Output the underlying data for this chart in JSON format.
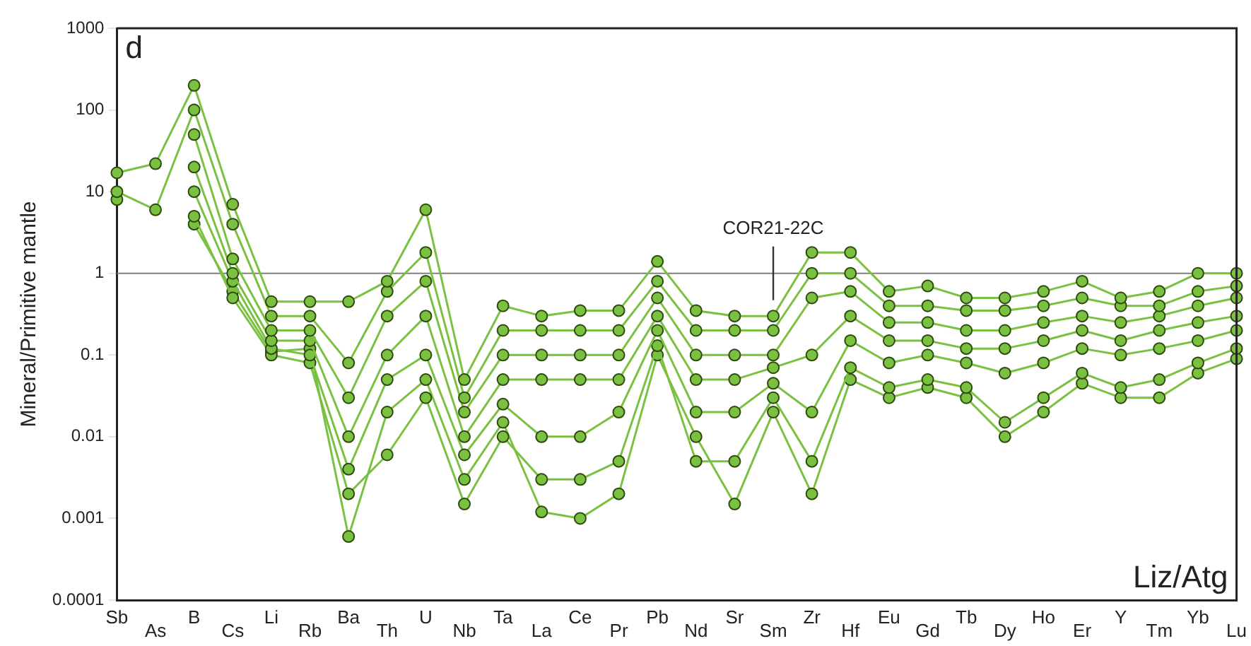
{
  "chart_data": {
    "type": "line",
    "ylabel": "Mineral/Primitive mantle",
    "annotations": [
      "d",
      "Liz/Atg",
      {
        "text": "COR21-22C",
        "x": "Sm",
        "y": 0.4
      }
    ],
    "categories": [
      "Sb",
      "As",
      "B",
      "Cs",
      "Li",
      "Rb",
      "Ba",
      "Th",
      "U",
      "Nb",
      "Ta",
      "La",
      "Ce",
      "Pr",
      "Pb",
      "Nd",
      "Sr",
      "Sm",
      "Zr",
      "Hf",
      "Eu",
      "Gd",
      "Tb",
      "Dy",
      "Ho",
      "Er",
      "Y",
      "Tm",
      "Yb",
      "Lu"
    ],
    "log": true,
    "ylim": [
      0.0001,
      1000
    ],
    "yticks": [
      0.0001,
      0.001,
      0.01,
      0.1,
      1,
      10,
      100,
      1000
    ],
    "grid": false,
    "legend": false,
    "marker": "circle",
    "line_style": "solid",
    "ref_lines": [
      {
        "axis": "y",
        "value": 1,
        "color": "#808080"
      }
    ],
    "series": [
      {
        "color": "#7ac142",
        "values": [
          17,
          22,
          200,
          7,
          0.45,
          0.45,
          0.45,
          0.8,
          6,
          0.05,
          0.4,
          0.3,
          0.35,
          0.35,
          1.4,
          0.35,
          0.3,
          0.3,
          1.8,
          1.8,
          0.6,
          0.7,
          0.5,
          0.5,
          0.6,
          0.8,
          0.5,
          0.6,
          1,
          1
        ]
      },
      {
        "color": "#7ac142",
        "values": [
          10,
          6,
          100,
          4,
          0.3,
          0.3,
          0.08,
          0.6,
          1.8,
          0.03,
          0.2,
          0.2,
          0.2,
          0.2,
          0.8,
          0.2,
          0.2,
          0.2,
          1,
          1,
          0.4,
          0.4,
          0.35,
          0.35,
          0.4,
          0.5,
          0.4,
          0.4,
          0.6,
          0.7
        ]
      },
      {
        "color": "#7ac142",
        "values": [
          8,
          null,
          50,
          1.5,
          0.2,
          0.2,
          0.03,
          0.3,
          0.8,
          0.02,
          0.1,
          0.1,
          0.1,
          0.1,
          0.5,
          0.1,
          0.1,
          0.1,
          0.5,
          0.6,
          0.25,
          0.25,
          0.2,
          0.2,
          0.25,
          0.3,
          0.25,
          0.3,
          0.4,
          0.5
        ]
      },
      {
        "color": "#7ac142",
        "values": [
          null,
          null,
          20,
          1,
          0.15,
          0.15,
          0.01,
          0.1,
          0.3,
          0.01,
          0.05,
          0.05,
          0.05,
          0.05,
          0.3,
          0.05,
          0.05,
          0.07,
          0.1,
          0.3,
          0.15,
          0.15,
          0.12,
          0.12,
          0.15,
          0.2,
          0.15,
          0.2,
          0.25,
          0.3
        ]
      },
      {
        "color": "#7ac142",
        "values": [
          null,
          null,
          10,
          0.8,
          0.12,
          0.1,
          0.004,
          0.05,
          0.1,
          0.006,
          0.025,
          0.01,
          0.01,
          0.02,
          0.2,
          0.02,
          0.02,
          0.045,
          0.02,
          0.15,
          0.08,
          0.1,
          0.08,
          0.06,
          0.08,
          0.12,
          0.1,
          0.12,
          0.15,
          0.2
        ]
      },
      {
        "color": "#7ac142",
        "values": [
          null,
          null,
          5,
          0.5,
          0.1,
          0.08,
          0.002,
          0.006,
          0.03,
          0.0015,
          0.01,
          0.003,
          0.003,
          0.005,
          0.13,
          0.005,
          0.005,
          0.03,
          0.005,
          0.07,
          0.04,
          0.05,
          0.04,
          0.015,
          0.03,
          0.06,
          0.04,
          0.05,
          0.08,
          0.12
        ]
      },
      {
        "color": "#7ac142",
        "values": [
          null,
          null,
          4,
          0.6,
          0.11,
          0.12,
          0.0006,
          0.02,
          0.05,
          0.003,
          0.015,
          0.0012,
          0.001,
          0.002,
          0.1,
          0.01,
          0.0015,
          0.02,
          0.002,
          0.05,
          0.03,
          0.04,
          0.03,
          0.01,
          0.02,
          0.045,
          0.03,
          0.03,
          0.06,
          0.09
        ]
      }
    ]
  }
}
